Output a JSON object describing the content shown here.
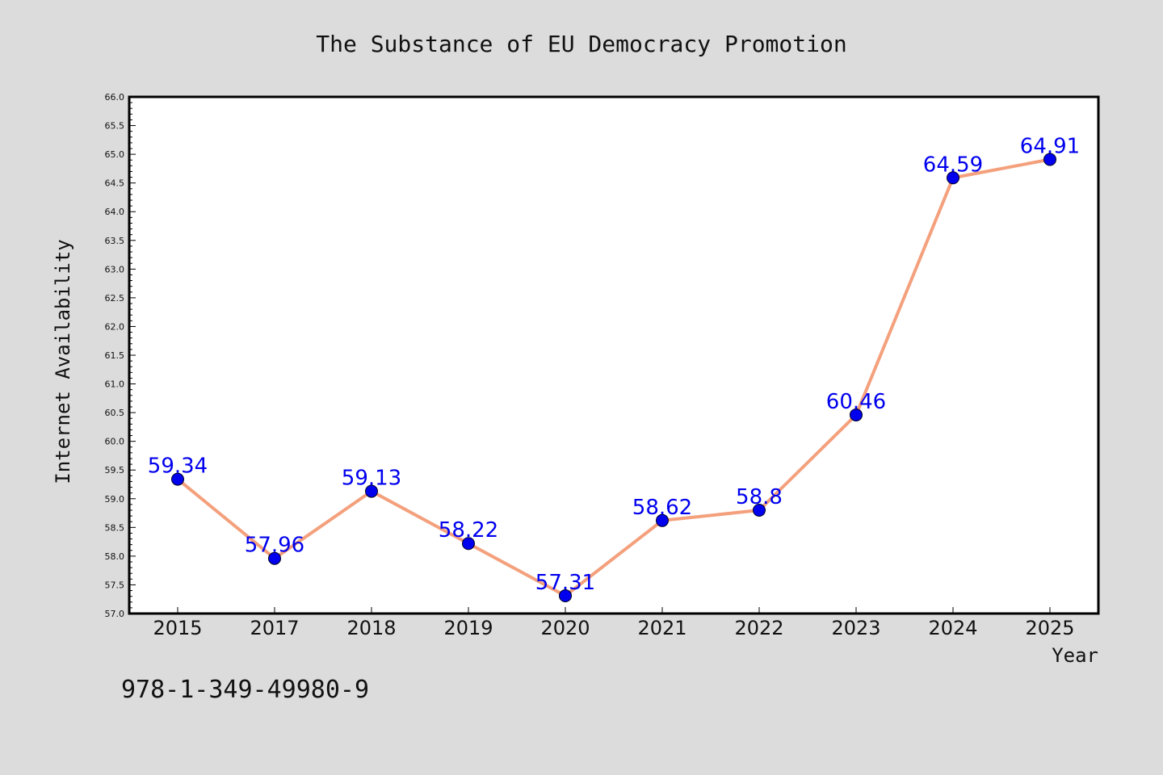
{
  "isbn": "978-1-349-49980-9",
  "colors": {
    "background": "#dcdcdc",
    "plot_background": "#ffffff",
    "line": "#f4a07c",
    "marker": "#0000ee",
    "data_label": "#0000ee"
  },
  "chart_data": {
    "type": "line",
    "title": "The Substance of EU Democracy Promotion",
    "xlabel": "Year",
    "ylabel": "Internet Availability",
    "categories": [
      "2015",
      "2017",
      "2018",
      "2019",
      "2020",
      "2021",
      "2022",
      "2023",
      "2024",
      "2025"
    ],
    "series": [
      {
        "values": [
          59.34,
          57.96,
          59.13,
          58.22,
          57.31,
          58.62,
          58.8,
          60.46,
          64.59,
          64.91
        ],
        "labels": [
          "59.34",
          "57.96",
          "59.13",
          "58.22",
          "57.31",
          "58.62",
          "58.8",
          "60.46",
          "64.59",
          "64.91"
        ]
      }
    ],
    "ylim": [
      57.0,
      66.0
    ],
    "yticks": [
      "57.0",
      "57.5",
      "58.0",
      "58.5",
      "59.0",
      "59.5",
      "60.0",
      "60.5",
      "61.0",
      "61.5",
      "62.0",
      "62.5",
      "63.0",
      "63.5",
      "64.0",
      "64.5",
      "65.0",
      "65.5",
      "66.0"
    ],
    "grid": false,
    "legend": false
  }
}
